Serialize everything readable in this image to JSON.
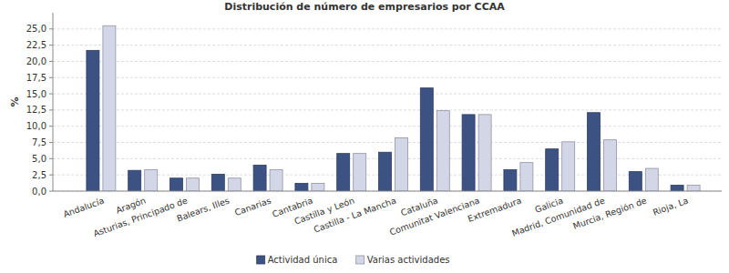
{
  "chart_data": {
    "type": "bar",
    "title": "Distribución de número de empresarios por CCAA",
    "y_label": "%",
    "categories": [
      "Andalucía",
      "Aragón",
      "Asturias, Principado de",
      "Balears, Illes",
      "Canarias",
      "Cantabria",
      "Castilla y León",
      "Castilla - La Mancha",
      "Cataluña",
      "Comunitat Valenciana",
      "Extremadura",
      "Galicia",
      "Madrid, Comunidad de",
      "Murcia, Región de",
      "Rioja, La"
    ],
    "series": [
      {
        "name": "Actividad única",
        "color": "#3b5282",
        "values": [
          21.7,
          3.2,
          2.0,
          2.6,
          4.0,
          1.2,
          5.8,
          6.0,
          15.9,
          11.8,
          3.3,
          6.5,
          12.1,
          3.0,
          0.9
        ]
      },
      {
        "name": "Varias actividades",
        "color": "#d2d6e6",
        "values": [
          25.5,
          3.3,
          2.0,
          2.0,
          3.3,
          1.2,
          5.8,
          8.2,
          12.4,
          11.8,
          4.4,
          7.6,
          7.9,
          3.5,
          0.9
        ]
      }
    ],
    "ylim": [
      0,
      27.5
    ],
    "yticks": [
      {
        "value": 0,
        "label": "0,0"
      },
      {
        "value": 2.5,
        "label": "2,5"
      },
      {
        "value": 5,
        "label": "5,0"
      },
      {
        "value": 7.5,
        "label": "7,5"
      },
      {
        "value": 10,
        "label": "10,0"
      },
      {
        "value": 12.5,
        "label": "12,5"
      },
      {
        "value": 15,
        "label": "15,0"
      },
      {
        "value": 17.5,
        "label": "17,5"
      },
      {
        "value": 20,
        "label": "20,0"
      },
      {
        "value": 22.5,
        "label": "22,5"
      },
      {
        "value": 25,
        "label": "25,0"
      }
    ],
    "grid": true,
    "legend": "bottom"
  }
}
